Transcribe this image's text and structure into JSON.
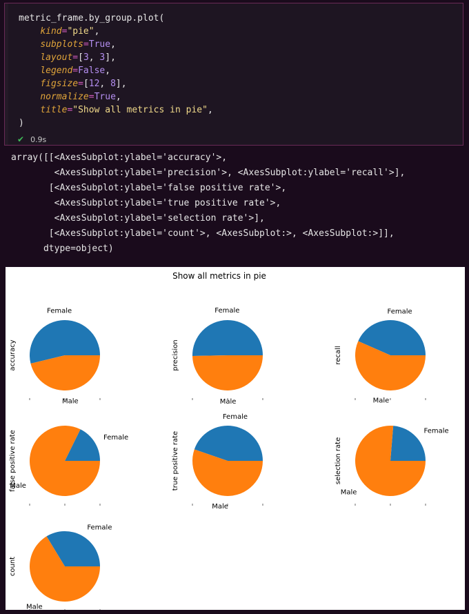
{
  "cell": {
    "code_lines": [
      [
        {
          "t": "metric_frame.by_group.plot(",
          "c": "pun"
        }
      ],
      [
        {
          "t": "    ",
          "c": "pun"
        },
        {
          "t": "kind",
          "c": "kw"
        },
        {
          "t": "=",
          "c": "eq"
        },
        {
          "t": "\"pie\"",
          "c": "str"
        },
        {
          "t": ",",
          "c": "pun"
        }
      ],
      [
        {
          "t": "    ",
          "c": "pun"
        },
        {
          "t": "subplots",
          "c": "kw"
        },
        {
          "t": "=",
          "c": "eq"
        },
        {
          "t": "True",
          "c": "bool"
        },
        {
          "t": ",",
          "c": "pun"
        }
      ],
      [
        {
          "t": "    ",
          "c": "pun"
        },
        {
          "t": "layout",
          "c": "kw"
        },
        {
          "t": "=",
          "c": "eq"
        },
        {
          "t": "[",
          "c": "pun"
        },
        {
          "t": "3",
          "c": "num"
        },
        {
          "t": ", ",
          "c": "pun"
        },
        {
          "t": "3",
          "c": "num"
        },
        {
          "t": "],",
          "c": "pun"
        }
      ],
      [
        {
          "t": "    ",
          "c": "pun"
        },
        {
          "t": "legend",
          "c": "kw"
        },
        {
          "t": "=",
          "c": "eq"
        },
        {
          "t": "False",
          "c": "bool"
        },
        {
          "t": ",",
          "c": "pun"
        }
      ],
      [
        {
          "t": "    ",
          "c": "pun"
        },
        {
          "t": "figsize",
          "c": "kw"
        },
        {
          "t": "=",
          "c": "eq"
        },
        {
          "t": "[",
          "c": "pun"
        },
        {
          "t": "12",
          "c": "num"
        },
        {
          "t": ", ",
          "c": "pun"
        },
        {
          "t": "8",
          "c": "num"
        },
        {
          "t": "],",
          "c": "pun"
        }
      ],
      [
        {
          "t": "    ",
          "c": "pun"
        },
        {
          "t": "normalize",
          "c": "kw"
        },
        {
          "t": "=",
          "c": "eq"
        },
        {
          "t": "True",
          "c": "bool"
        },
        {
          "t": ",",
          "c": "pun"
        }
      ],
      [
        {
          "t": "    ",
          "c": "pun"
        },
        {
          "t": "title",
          "c": "kw"
        },
        {
          "t": "=",
          "c": "eq"
        },
        {
          "t": "\"Show all metrics in pie\"",
          "c": "str"
        },
        {
          "t": ",",
          "c": "pun"
        }
      ],
      [
        {
          "t": ")",
          "c": "pun"
        }
      ]
    ],
    "exec_time": "0.9s",
    "status_icon": "check-icon"
  },
  "output_text": "array([[<AxesSubplot:ylabel='accuracy'>,\n        <AxesSubplot:ylabel='precision'>, <AxesSubplot:ylabel='recall'>],\n       [<AxesSubplot:ylabel='false positive rate'>,\n        <AxesSubplot:ylabel='true positive rate'>,\n        <AxesSubplot:ylabel='selection rate'>],\n       [<AxesSubplot:ylabel='count'>, <AxesSubplot:>, <AxesSubplot:>]],\n      dtype=object)",
  "colors": {
    "female": "#1f77b4",
    "male": "#ff7f0e"
  },
  "chart_data": {
    "type": "pie",
    "title": "Show all metrics in pie",
    "categories": [
      "Female",
      "Male"
    ],
    "layout": [
      3,
      3
    ],
    "legend": false,
    "subplots": [
      {
        "ylabel": "accuracy",
        "values": [
          0.538,
          0.462
        ]
      },
      {
        "ylabel": "precision",
        "values": [
          0.503,
          0.497
        ]
      },
      {
        "ylabel": "recall",
        "values": [
          0.434,
          0.566
        ]
      },
      {
        "ylabel": "false positive rate",
        "values": [
          0.177,
          0.823
        ]
      },
      {
        "ylabel": "true positive rate",
        "values": [
          0.447,
          0.553
        ]
      },
      {
        "ylabel": "selection rate",
        "values": [
          0.237,
          0.763
        ]
      },
      {
        "ylabel": "count",
        "values": [
          0.337,
          0.663
        ]
      }
    ]
  }
}
